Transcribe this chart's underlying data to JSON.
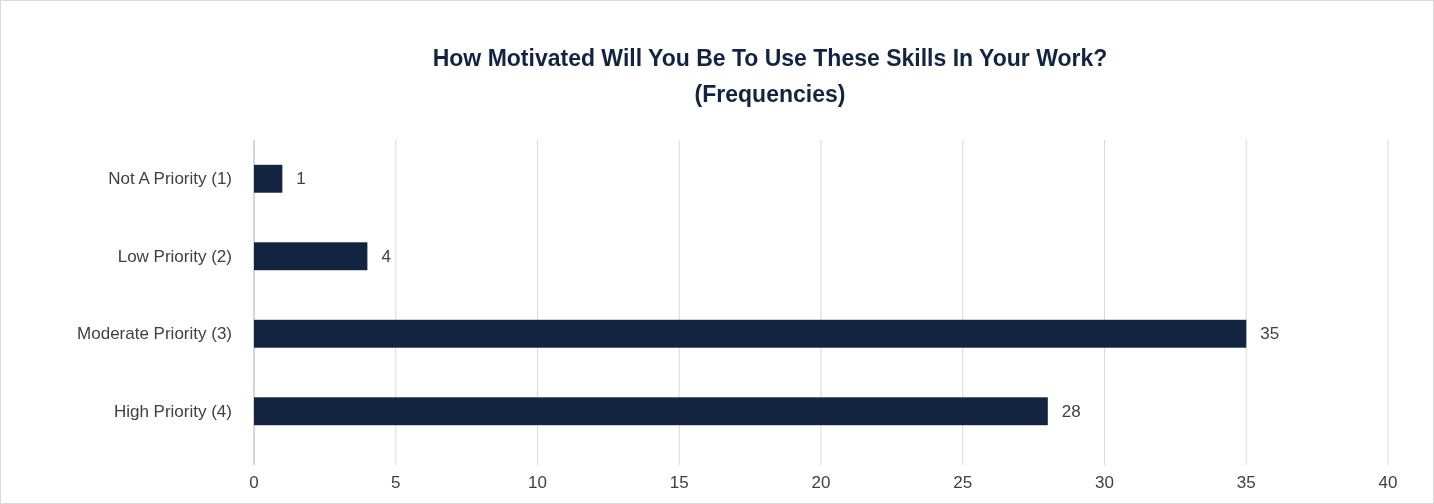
{
  "chart_data": {
    "type": "bar",
    "orientation": "horizontal",
    "title": "How Motivated Will You Be To Use These Skills In Your Work?\n(Frequencies)",
    "categories": [
      "Not A Priority (1)",
      "Low Priority (2)",
      "Moderate Priority (3)",
      "High Priority (4)"
    ],
    "values": [
      1,
      4,
      35,
      28
    ],
    "color": "#12243f",
    "xlim": [
      0,
      40
    ],
    "xticks": [
      0,
      5,
      10,
      15,
      20,
      25,
      30,
      35,
      40
    ],
    "grid": "x",
    "data_labels": true
  }
}
